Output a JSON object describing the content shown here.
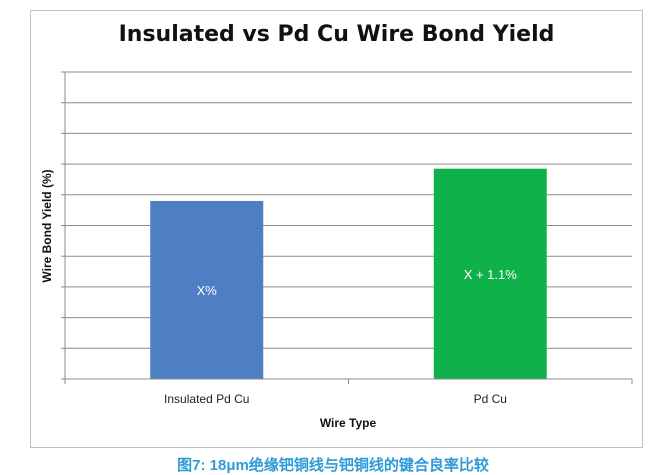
{
  "chart_data": {
    "type": "bar",
    "title": "Insulated vs Pd Cu Wire Bond Yield",
    "xlabel": "Wire Type",
    "ylabel": "Wire Bond Yield (%)",
    "categories": [
      "Insulated Pd Cu",
      "Pd Cu"
    ],
    "values": [
      5.8,
      6.85
    ],
    "data_labels": [
      "X%",
      "X + 1.1%"
    ],
    "colors": [
      "#4f7fc3",
      "#0fb14b"
    ],
    "ylim": [
      0,
      10
    ],
    "grid": true,
    "y_tick_labels_shown": false
  },
  "caption": "图7: 18μm绝缘钯铜线与钯铜线的键合良率比较"
}
